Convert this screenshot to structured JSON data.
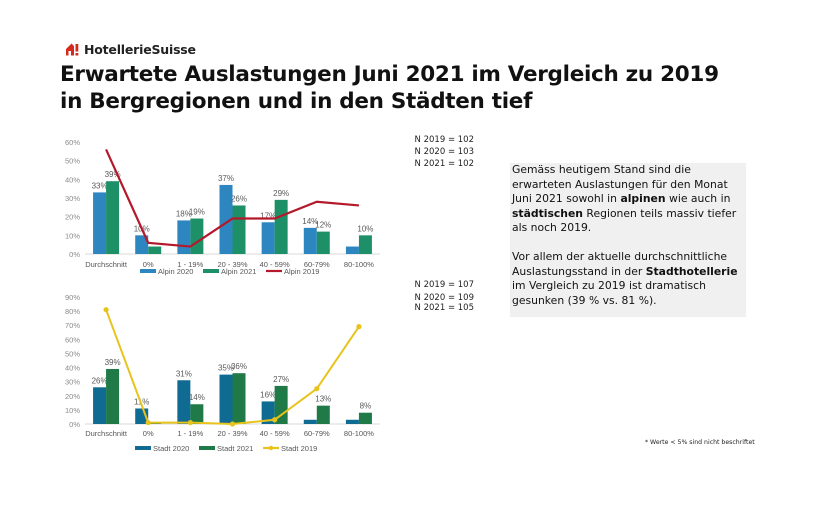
{
  "brand": {
    "name": "HotellerieSuisse",
    "color": "#d52b1e"
  },
  "title": "Erwartete Auslastungen Juni 2021 im Vergleich zu 2019 in Bergregionen und in den Städten tief",
  "textbox": {
    "p1": {
      "before": "Gemäss heutigem Stand sind die erwarteten Auslastungen für den Monat Juni 2021 sowohl in ",
      "bold1": "alpinen",
      "mid": " wie auch in ",
      "bold2": "städtischen",
      "after": " Regionen teils massiv tiefer als noch 2019."
    },
    "p2": {
      "before": "Vor allem der aktuelle durchschnittliche Auslastungsstand in der ",
      "bold": "Stadthotellerie",
      "after": " im Vergleich zu 2019 ist dramatisch gesunken (39 % vs. 81 %)."
    }
  },
  "footnote": "* Werte < 5% sind nicht beschriftet",
  "chart_data": [
    {
      "type": "bar",
      "title": "Alpin",
      "categories": [
        "Durchschnitt",
        "0%",
        "1 - 19%",
        "20 - 39%",
        "40 - 59%",
        "60-79%",
        "80-100%"
      ],
      "ylim": [
        0,
        60
      ],
      "yticks": [
        "0%",
        "10%",
        "20%",
        "30%",
        "40%",
        "50%",
        "60%"
      ],
      "legend_position": "bottom",
      "sample_sizes": [
        "N 2019 = 102",
        "N 2020 = 103",
        "N 2021 = 102"
      ],
      "series": [
        {
          "name": "Alpin 2020",
          "kind": "bar",
          "color": "#2e86c1",
          "values": [
            33,
            10,
            18,
            37,
            17,
            14,
            4
          ],
          "labels": [
            "33%",
            "10%",
            "18%",
            "37%",
            "17%",
            "14%",
            ""
          ]
        },
        {
          "name": "Alpin 2021",
          "kind": "bar",
          "color": "#1e9068",
          "values": [
            39,
            4,
            19,
            26,
            29,
            12,
            10
          ],
          "labels": [
            "39%",
            "",
            "19%",
            "26%",
            "29%",
            "12%",
            "10%"
          ]
        },
        {
          "name": "Alpin 2019",
          "kind": "line",
          "color": "#b3192b",
          "values": [
            56,
            6,
            4,
            19,
            19,
            28,
            26
          ],
          "labels": []
        }
      ]
    },
    {
      "type": "bar",
      "title": "Stadt",
      "categories": [
        "Durchschnitt",
        "0%",
        "1 - 19%",
        "20 - 39%",
        "40 - 59%",
        "60-79%",
        "80-100%"
      ],
      "ylim": [
        0,
        90
      ],
      "yticks": [
        "0%",
        "10%",
        "20%",
        "30%",
        "40%",
        "50%",
        "60%",
        "70%",
        "80%",
        "90%"
      ],
      "legend_position": "bottom",
      "sample_sizes": [
        "N 2019 = 107",
        "N 2020 = 109",
        "N 2021 = 105"
      ],
      "series": [
        {
          "name": "Stadt  2020",
          "kind": "bar",
          "color": "#0f6b91",
          "values": [
            26,
            11,
            31,
            35,
            16,
            3,
            3
          ],
          "labels": [
            "26%",
            "11%",
            "31%",
            "35%",
            "16%",
            "",
            ""
          ]
        },
        {
          "name": "Stadt 2021",
          "kind": "bar",
          "color": "#1f7a47",
          "values": [
            39,
            1,
            14,
            36,
            27,
            13,
            8
          ],
          "labels": [
            "39%",
            "",
            "14%",
            "36%",
            "27%",
            "13%",
            "8%"
          ]
        },
        {
          "name": "Stadt  2019",
          "kind": "line",
          "color": "#e8c31c",
          "values": [
            81,
            1,
            1,
            0,
            3,
            25,
            69
          ],
          "labels": []
        }
      ]
    }
  ]
}
